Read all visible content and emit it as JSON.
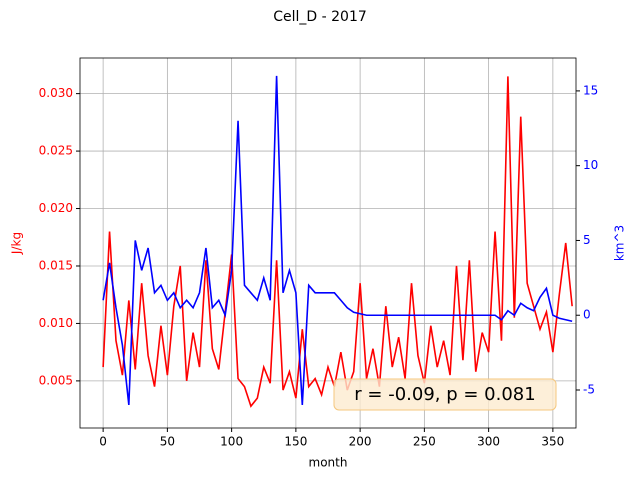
{
  "chart_data": {
    "type": "line",
    "title": "Cell_D - 2017",
    "xlabel": "month",
    "ylabel": "J/kg",
    "y2label": "km^3",
    "annotation": "r = -0.09, p = 0.081",
    "x": [
      0,
      5,
      10,
      15,
      20,
      25,
      30,
      35,
      40,
      45,
      50,
      55,
      60,
      65,
      70,
      75,
      80,
      85,
      90,
      95,
      100,
      105,
      110,
      115,
      120,
      125,
      130,
      135,
      140,
      145,
      150,
      155,
      160,
      165,
      170,
      175,
      180,
      185,
      190,
      195,
      200,
      205,
      210,
      215,
      220,
      225,
      230,
      235,
      240,
      245,
      250,
      255,
      260,
      265,
      270,
      275,
      280,
      285,
      290,
      295,
      300,
      305,
      310,
      315,
      320,
      325,
      330,
      335,
      340,
      345,
      350,
      355,
      360,
      365
    ],
    "series": [
      {
        "name": "J/kg",
        "color": "#ff0000",
        "values": [
          0.0062,
          0.018,
          0.0085,
          0.0055,
          0.012,
          0.006,
          0.0135,
          0.0072,
          0.0045,
          0.0098,
          0.0055,
          0.0115,
          0.015,
          0.005,
          0.0092,
          0.0062,
          0.0155,
          0.0078,
          0.006,
          0.011,
          0.016,
          0.0052,
          0.0045,
          0.0028,
          0.0035,
          0.0062,
          0.0048,
          0.0155,
          0.0042,
          0.0058,
          0.0035,
          0.0095,
          0.0045,
          0.0052,
          0.0038,
          0.0062,
          0.0045,
          0.0075,
          0.0042,
          0.0058,
          0.0135,
          0.0052,
          0.0078,
          0.0045,
          0.0115,
          0.0062,
          0.0088,
          0.0052,
          0.0135,
          0.0072,
          0.0048,
          0.0098,
          0.0062,
          0.0085,
          0.0055,
          0.015,
          0.0068,
          0.0155,
          0.0058,
          0.0092,
          0.0075,
          0.018,
          0.0085,
          0.0315,
          0.0105,
          0.028,
          0.0135,
          0.0115,
          0.0095,
          0.011,
          0.0075,
          0.0125,
          0.017,
          0.0115
        ]
      },
      {
        "name": "km^3",
        "color": "#0000ff",
        "axis": "y2",
        "values": [
          1,
          3.5,
          0.5,
          -2,
          -6,
          5,
          3,
          4.5,
          1.5,
          2,
          1,
          1.5,
          0.5,
          1,
          0.5,
          1.5,
          4.5,
          0.5,
          1,
          0,
          3,
          13,
          2,
          1.5,
          1,
          2.5,
          1,
          16,
          1.5,
          3,
          1.5,
          -6,
          2,
          1.5,
          1.5,
          1.5,
          1.5,
          1,
          0.5,
          0.2,
          0.1,
          0,
          0,
          0,
          0,
          0,
          0,
          0,
          0,
          0,
          0,
          0,
          0,
          0,
          0,
          0,
          0,
          0,
          0,
          0,
          0,
          0,
          -0.3,
          0.3,
          0,
          0.8,
          0.5,
          0.3,
          1.2,
          1.8,
          0,
          -0.2,
          -0.3,
          -0.4
        ]
      }
    ],
    "xlim": [
      -18,
      368
    ],
    "xticks": [
      0,
      50,
      100,
      150,
      200,
      250,
      300,
      350
    ],
    "ylim": [
      0.0009,
      0.0331
    ],
    "yticks": [
      0.005,
      {
        "value": 0.01,
        "label": "0.010"
      },
      0.015,
      {
        "value": 0.02,
        "label": "0.020"
      },
      0.025,
      {
        "value": 0.03,
        "label": "0.030"
      }
    ],
    "y2lim": [
      -7.54,
      17.2
    ],
    "y2ticks": [
      -5,
      0,
      5,
      10,
      15
    ],
    "grid": true
  }
}
